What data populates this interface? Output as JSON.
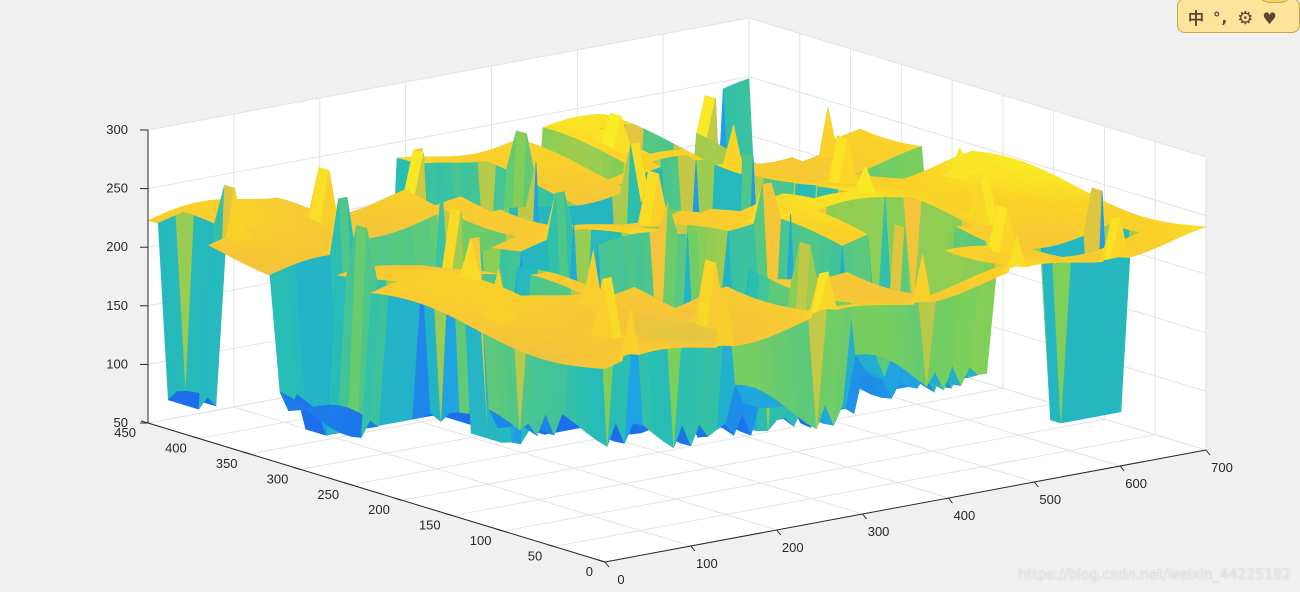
{
  "chart_data": {
    "type": "surface",
    "x_ticks": [
      "0",
      "100",
      "200",
      "300",
      "400",
      "500",
      "600",
      "700"
    ],
    "y_ticks": [
      "0",
      "50",
      "100",
      "150",
      "200",
      "250",
      "300",
      "350",
      "400",
      "450"
    ],
    "z_ticks": [
      "50",
      "100",
      "150",
      "200",
      "250",
      "300"
    ],
    "xlim": [
      0,
      700
    ],
    "ylim": [
      0,
      450
    ],
    "zlim": [
      50,
      300
    ],
    "grid": true,
    "colormap": "parula",
    "colors": {
      "low": "#1c9fe6",
      "mid": "#7ccf5a",
      "high": "#f9f622",
      "plateau": "#f5c43a"
    }
  },
  "ime_toolbar": {
    "char_label": "中",
    "punct_label": "°,",
    "settings_icon": "gear-icon",
    "heart_icon": "heart-icon",
    "mascot_icon": "mascot-icon"
  },
  "watermark": "https://blog.csdn.net/weixin_44225182"
}
